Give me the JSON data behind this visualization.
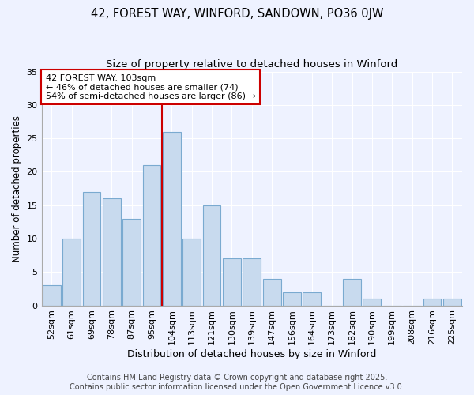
{
  "title": "42, FOREST WAY, WINFORD, SANDOWN, PO36 0JW",
  "subtitle": "Size of property relative to detached houses in Winford",
  "xlabel": "Distribution of detached houses by size in Winford",
  "ylabel": "Number of detached properties",
  "categories": [
    "52sqm",
    "61sqm",
    "69sqm",
    "78sqm",
    "87sqm",
    "95sqm",
    "104sqm",
    "113sqm",
    "121sqm",
    "130sqm",
    "139sqm",
    "147sqm",
    "156sqm",
    "164sqm",
    "173sqm",
    "182sqm",
    "190sqm",
    "199sqm",
    "208sqm",
    "216sqm",
    "225sqm"
  ],
  "values": [
    3,
    10,
    17,
    16,
    13,
    21,
    26,
    10,
    15,
    7,
    7,
    4,
    2,
    2,
    0,
    4,
    1,
    0,
    0,
    1,
    1
  ],
  "bar_color": "#c8daee",
  "bar_edge_color": "#7aaad0",
  "vline_color": "#cc0000",
  "vline_x": 6,
  "annotation_text": "42 FOREST WAY: 103sqm\n← 46% of detached houses are smaller (74)\n54% of semi-detached houses are larger (86) →",
  "annotation_box_facecolor": "#ffffff",
  "annotation_box_edgecolor": "#cc0000",
  "footer_line1": "Contains HM Land Registry data © Crown copyright and database right 2025.",
  "footer_line2": "Contains public sector information licensed under the Open Government Licence v3.0.",
  "background_color": "#eef2ff",
  "grid_color": "#ffffff",
  "ylim": [
    0,
    35
  ],
  "yticks": [
    0,
    5,
    10,
    15,
    20,
    25,
    30,
    35
  ],
  "title_fontsize": 10.5,
  "subtitle_fontsize": 9.5,
  "ylabel_fontsize": 8.5,
  "xlabel_fontsize": 9,
  "tick_fontsize": 8,
  "annotation_fontsize": 8,
  "footer_fontsize": 7
}
